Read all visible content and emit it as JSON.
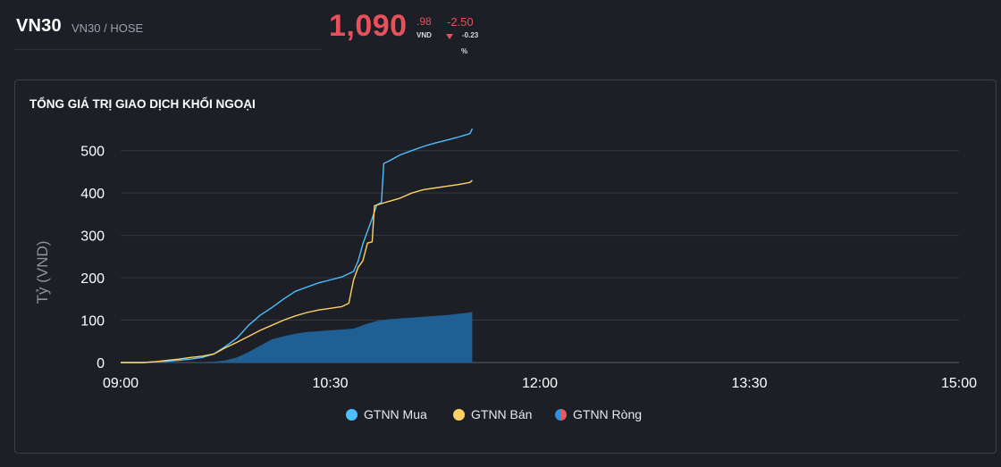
{
  "header": {
    "ticker": "VN30",
    "exchange": "VN30 / HOSE",
    "price_main": "1,090",
    "price_decimal": ".98",
    "price_unit": "VND",
    "change": "-2.50",
    "change_pct": "-0.23",
    "pct_sign": "%"
  },
  "panel": {
    "title": "TỔNG GIÁ TRỊ GIAO DỊCH KHỐI NGOẠI"
  },
  "colors": {
    "mua": "#4dbfff",
    "ban": "#ffd166",
    "rong": "#1f5f93",
    "rong_legend_left": "#2f8fe0",
    "rong_legend_right": "#e85a5a",
    "grid": "#343842"
  },
  "chart_data": {
    "type": "line",
    "ylabel": "Tỷ (VND)",
    "ylim": [
      0,
      550
    ],
    "yticks": [
      "0",
      "100",
      "200",
      "300",
      "400",
      "500"
    ],
    "xlim": [
      "09:00",
      "15:00"
    ],
    "xticks": [
      "09:00",
      "10:30",
      "12:00",
      "13:30",
      "15:00"
    ],
    "grid": true,
    "legend_position": "bottom-center",
    "series": [
      {
        "name": "GTNN Mua",
        "kind": "line",
        "points": [
          [
            "09:00",
            0
          ],
          [
            "09:10",
            0
          ],
          [
            "09:15",
            2
          ],
          [
            "09:20",
            3
          ],
          [
            "09:25",
            5
          ],
          [
            "09:30",
            8
          ],
          [
            "09:35",
            12
          ],
          [
            "09:40",
            20
          ],
          [
            "09:45",
            38
          ],
          [
            "09:50",
            58
          ],
          [
            "09:55",
            88
          ],
          [
            "10:00",
            112
          ],
          [
            "10:05",
            130
          ],
          [
            "10:10",
            150
          ],
          [
            "10:15",
            168
          ],
          [
            "10:20",
            178
          ],
          [
            "10:25",
            188
          ],
          [
            "10:30",
            195
          ],
          [
            "10:35",
            202
          ],
          [
            "10:40",
            215
          ],
          [
            "10:42",
            240
          ],
          [
            "10:44",
            280
          ],
          [
            "10:46",
            310
          ],
          [
            "10:48",
            340
          ],
          [
            "10:50",
            372
          ],
          [
            "10:52",
            378
          ],
          [
            "10:53",
            470
          ],
          [
            "10:55",
            475
          ],
          [
            "11:00",
            490
          ],
          [
            "11:05",
            500
          ],
          [
            "11:10",
            510
          ],
          [
            "11:15",
            518
          ],
          [
            "11:20",
            525
          ],
          [
            "11:25",
            532
          ],
          [
            "11:30",
            540
          ],
          [
            "11:31",
            552
          ]
        ]
      },
      {
        "name": "GTNN Bán",
        "kind": "line",
        "points": [
          [
            "09:00",
            0
          ],
          [
            "09:10",
            0
          ],
          [
            "09:15",
            2
          ],
          [
            "09:20",
            5
          ],
          [
            "09:25",
            8
          ],
          [
            "09:30",
            12
          ],
          [
            "09:35",
            15
          ],
          [
            "09:40",
            20
          ],
          [
            "09:45",
            35
          ],
          [
            "09:50",
            48
          ],
          [
            "09:55",
            62
          ],
          [
            "10:00",
            76
          ],
          [
            "10:05",
            88
          ],
          [
            "10:10",
            100
          ],
          [
            "10:15",
            110
          ],
          [
            "10:20",
            118
          ],
          [
            "10:25",
            124
          ],
          [
            "10:30",
            128
          ],
          [
            "10:35",
            132
          ],
          [
            "10:38",
            140
          ],
          [
            "10:40",
            195
          ],
          [
            "10:42",
            225
          ],
          [
            "10:44",
            240
          ],
          [
            "10:46",
            282
          ],
          [
            "10:48",
            285
          ],
          [
            "10:49",
            370
          ],
          [
            "10:52",
            375
          ],
          [
            "10:55",
            380
          ],
          [
            "11:00",
            388
          ],
          [
            "11:05",
            400
          ],
          [
            "11:10",
            408
          ],
          [
            "11:15",
            412
          ],
          [
            "11:20",
            416
          ],
          [
            "11:25",
            420
          ],
          [
            "11:30",
            425
          ],
          [
            "11:31",
            430
          ]
        ]
      },
      {
        "name": "GTNN Ròng",
        "kind": "area",
        "points": [
          [
            "09:00",
            0
          ],
          [
            "09:30",
            0
          ],
          [
            "09:40",
            2
          ],
          [
            "09:45",
            5
          ],
          [
            "09:50",
            12
          ],
          [
            "09:55",
            25
          ],
          [
            "10:00",
            40
          ],
          [
            "10:05",
            55
          ],
          [
            "10:10",
            62
          ],
          [
            "10:15",
            68
          ],
          [
            "10:20",
            72
          ],
          [
            "10:25",
            74
          ],
          [
            "10:30",
            76
          ],
          [
            "10:35",
            78
          ],
          [
            "10:40",
            80
          ],
          [
            "10:45",
            90
          ],
          [
            "10:50",
            98
          ],
          [
            "10:55",
            102
          ],
          [
            "11:00",
            104
          ],
          [
            "11:05",
            106
          ],
          [
            "11:10",
            108
          ],
          [
            "11:15",
            110
          ],
          [
            "11:20",
            112
          ],
          [
            "11:25",
            115
          ],
          [
            "11:30",
            118
          ],
          [
            "11:31",
            120
          ]
        ]
      }
    ]
  }
}
